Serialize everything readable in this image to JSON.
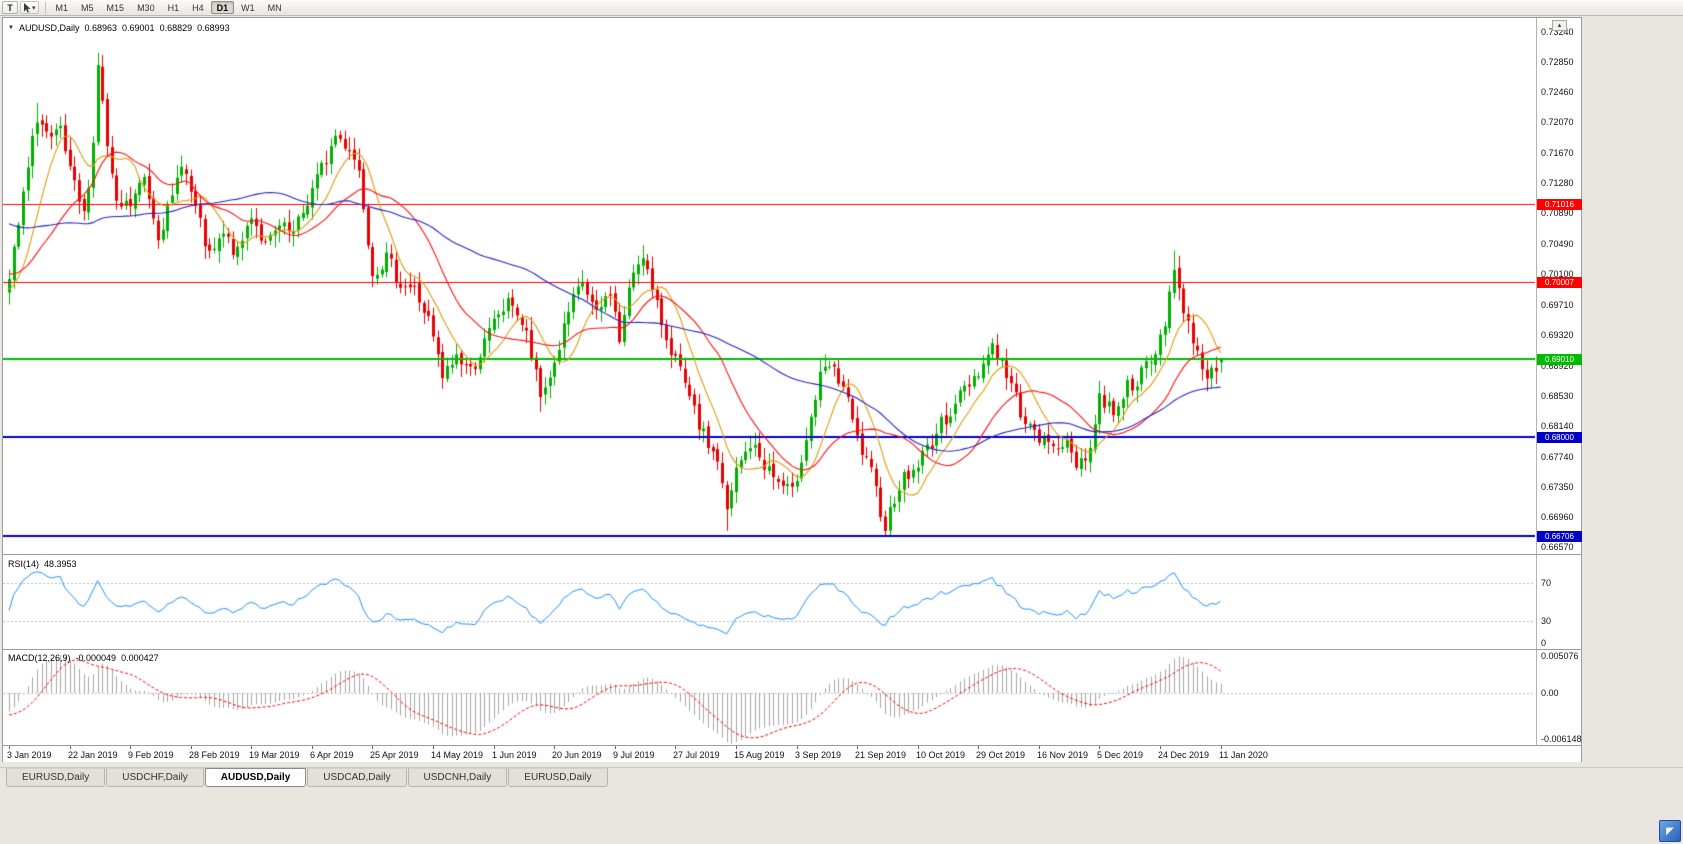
{
  "icons": {
    "chart_menu": "▼",
    "dropdown_caret": "▾",
    "scroll_up": "▲",
    "corner_arrow": "◤"
  },
  "toolbar": {
    "template_button": "T",
    "timeframes": [
      "M1",
      "M5",
      "M15",
      "M30",
      "H1",
      "H4",
      "D1",
      "W1",
      "MN"
    ],
    "active_timeframe": "D1"
  },
  "chart_header": {
    "symbol": "AUDUSD,Daily",
    "open": "0.68963",
    "high": "0.69001",
    "low": "0.68829",
    "close": "0.68993"
  },
  "rsi_panel": {
    "label": "RSI(14)",
    "value": "48.3953",
    "levels": [
      "70",
      "30",
      "0"
    ]
  },
  "macd_panel": {
    "label": "MACD(12,26,9)",
    "value_main": "-0.000049",
    "value_signal": "0.000427",
    "axis_max": "0.005076",
    "axis_zero": "0.00",
    "axis_min": "-0.006148"
  },
  "price_axis": {
    "ticks": [
      "0.73240",
      "0.72850",
      "0.72460",
      "0.72070",
      "0.71670",
      "0.71280",
      "0.70890",
      "0.70490",
      "0.70100",
      "0.69710",
      "0.69320",
      "0.68920",
      "0.68530",
      "0.68140",
      "0.67740",
      "0.67350",
      "0.66960",
      "0.66570"
    ]
  },
  "date_axis": {
    "labels": [
      "3 Jan 2019",
      "22 Jan 2019",
      "9 Feb 2019",
      "28 Feb 2019",
      "19 Mar 2019",
      "6 Apr 2019",
      "25 Apr 2019",
      "14 May 2019",
      "1 Jun 2019",
      "20 Jun 2019",
      "9 Jul 2019",
      "27 Jul 2019",
      "15 Aug 2019",
      "3 Sep 2019",
      "21 Sep 2019",
      "10 Oct 2019",
      "29 Oct 2019",
      "16 Nov 2019",
      "5 Dec 2019",
      "24 Dec 2019",
      "11 Jan 2020"
    ]
  },
  "tabs": [
    {
      "label": "EURUSD,Daily",
      "active": false
    },
    {
      "label": "USDCHF,Daily",
      "active": false
    },
    {
      "label": "AUDUSD,Daily",
      "active": true
    },
    {
      "label": "USDCAD,Daily",
      "active": false
    },
    {
      "label": "USDCNH,Daily",
      "active": false
    },
    {
      "label": "EURUSD,Daily",
      "active": false
    }
  ],
  "chart_data": {
    "type": "candlestick",
    "symbol": "AUDUSD",
    "timeframe": "Daily",
    "count": 261,
    "ohlc_current": {
      "open": 0.68963,
      "high": 0.69001,
      "low": 0.68829,
      "close": 0.68993
    },
    "colors": {
      "up": "#00b000",
      "down": "#e80000",
      "background": "#ffffff"
    },
    "hlines": [
      {
        "price": 0.71016,
        "label": "0.71016",
        "color": "#ff0000",
        "width": 1
      },
      {
        "price": 0.70007,
        "label": "0.70007",
        "color": "#ff0000",
        "width": 1
      },
      {
        "price": 0.6901,
        "label": "0.69010",
        "color": "#00bb00",
        "width": 2
      },
      {
        "price": 0.68,
        "label": "0.68000",
        "color": "#0000c8",
        "width": 2
      },
      {
        "price": 0.66706,
        "label": "0.66706",
        "color": "#0000c8",
        "width": 2
      }
    ],
    "mas": [
      {
        "period": 9,
        "color": "#e09a10"
      },
      {
        "period": 21,
        "color": "#ff1010"
      },
      {
        "period": 55,
        "color": "#2424c8"
      }
    ],
    "rsi": {
      "period": 14,
      "color": "#1e90ff",
      "level_color": "#b4bac8",
      "levels": [
        70,
        30
      ]
    },
    "macd": {
      "fast": 12,
      "slow": 26,
      "signal": 9,
      "max": 0.005076,
      "min": -0.006148,
      "hist_color": "#a6a6a6",
      "signal_color": "#ff0000"
    },
    "synth": {
      "seed": 7,
      "noise": 0.0011,
      "gap_noise": 0.00035,
      "wick": 0.0014,
      "pre_bars": 60,
      "pre_anchors": [
        [
          -60,
          0.719
        ],
        [
          -45,
          0.715
        ],
        [
          -30,
          0.7085
        ],
        [
          -15,
          0.703
        ],
        [
          -5,
          0.6985
        ]
      ]
    },
    "close_anchors": [
      [
        0,
        0.7
      ],
      [
        3,
        0.711
      ],
      [
        6,
        0.7215
      ],
      [
        9,
        0.718
      ],
      [
        11,
        0.7195
      ],
      [
        13,
        0.714
      ],
      [
        16,
        0.7085
      ],
      [
        18,
        0.718
      ],
      [
        19,
        0.7285
      ],
      [
        21,
        0.7175
      ],
      [
        23,
        0.7095
      ],
      [
        26,
        0.71
      ],
      [
        29,
        0.7135
      ],
      [
        32,
        0.7065
      ],
      [
        35,
        0.7105
      ],
      [
        37,
        0.716
      ],
      [
        39,
        0.7115
      ],
      [
        43,
        0.703
      ],
      [
        46,
        0.706
      ],
      [
        49,
        0.7035
      ],
      [
        52,
        0.709
      ],
      [
        55,
        0.7045
      ],
      [
        58,
        0.707
      ],
      [
        61,
        0.706
      ],
      [
        65,
        0.712
      ],
      [
        68,
        0.716
      ],
      [
        70,
        0.719
      ],
      [
        73,
        0.7175
      ],
      [
        75,
        0.7145
      ],
      [
        78,
        0.7015
      ],
      [
        81,
        0.703
      ],
      [
        84,
        0.7
      ],
      [
        87,
        0.699
      ],
      [
        90,
        0.695
      ],
      [
        93,
        0.6875
      ],
      [
        96,
        0.6905
      ],
      [
        99,
        0.6885
      ],
      [
        102,
        0.692
      ],
      [
        105,
        0.696
      ],
      [
        108,
        0.6975
      ],
      [
        111,
        0.693
      ],
      [
        114,
        0.685
      ],
      [
        117,
        0.6895
      ],
      [
        120,
        0.696
      ],
      [
        123,
        0.7
      ],
      [
        126,
        0.6955
      ],
      [
        129,
        0.699
      ],
      [
        131,
        0.6925
      ],
      [
        134,
        0.7015
      ],
      [
        136,
        0.704
      ],
      [
        138,
        0.6985
      ],
      [
        141,
        0.693
      ],
      [
        143,
        0.69
      ],
      [
        146,
        0.6845
      ],
      [
        149,
        0.68
      ],
      [
        152,
        0.677
      ],
      [
        154,
        0.67
      ],
      [
        156,
        0.6755
      ],
      [
        159,
        0.679
      ],
      [
        162,
        0.6765
      ],
      [
        165,
        0.674
      ],
      [
        168,
        0.6725
      ],
      [
        171,
        0.68
      ],
      [
        174,
        0.6875
      ],
      [
        176,
        0.689
      ],
      [
        179,
        0.6865
      ],
      [
        182,
        0.6795
      ],
      [
        185,
        0.675
      ],
      [
        188,
        0.6685
      ],
      [
        191,
        0.674
      ],
      [
        194,
        0.6755
      ],
      [
        197,
        0.6785
      ],
      [
        200,
        0.6815
      ],
      [
        203,
        0.6845
      ],
      [
        206,
        0.687
      ],
      [
        209,
        0.6895
      ],
      [
        211,
        0.692
      ],
      [
        214,
        0.688
      ],
      [
        217,
        0.6835
      ],
      [
        220,
        0.68
      ],
      [
        223,
        0.679
      ],
      [
        226,
        0.6795
      ],
      [
        229,
        0.6765
      ],
      [
        232,
        0.6785
      ],
      [
        234,
        0.685
      ],
      [
        237,
        0.6835
      ],
      [
        240,
        0.6865
      ],
      [
        243,
        0.688
      ],
      [
        246,
        0.6905
      ],
      [
        248,
        0.695
      ],
      [
        250,
        0.7025
      ],
      [
        252,
        0.6955
      ],
      [
        254,
        0.693
      ],
      [
        256,
        0.689
      ],
      [
        258,
        0.688
      ],
      [
        260,
        0.6899
      ]
    ],
    "wick_overrides": [
      {
        "i": 6,
        "h": 0.7232
      },
      {
        "i": 19,
        "h": 0.7297
      },
      {
        "i": 93,
        "l": 0.6862
      },
      {
        "i": 114,
        "l": 0.6832
      },
      {
        "i": 136,
        "h": 0.7048
      },
      {
        "i": 154,
        "l": 0.6678
      },
      {
        "i": 188,
        "l": 0.6671
      },
      {
        "i": 250,
        "h": 0.7041
      }
    ]
  }
}
